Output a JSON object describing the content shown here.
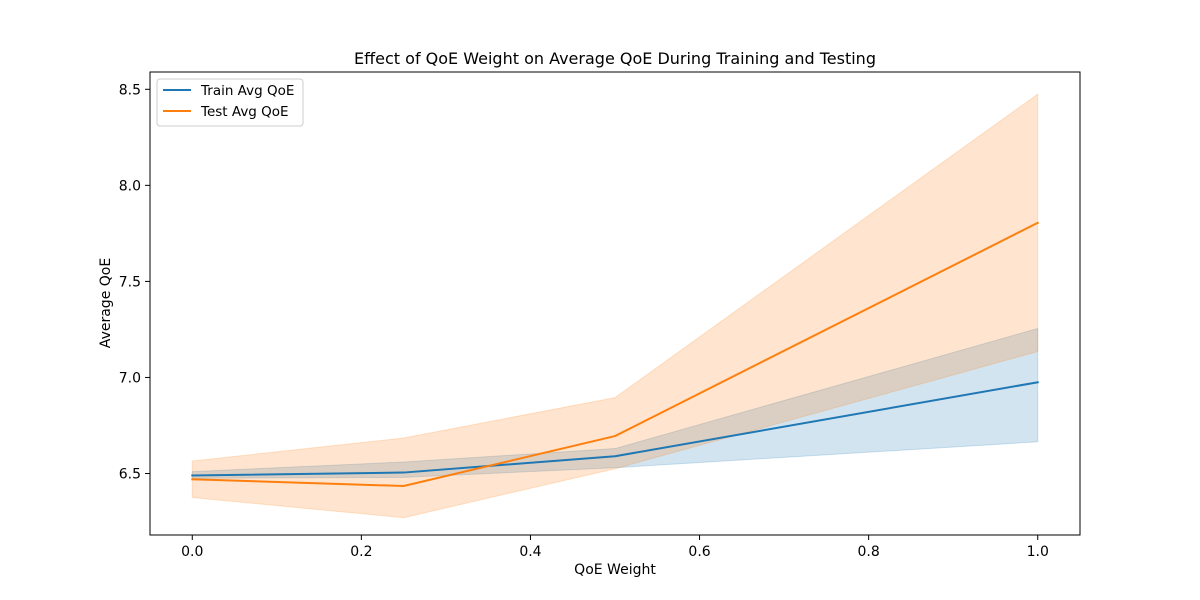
{
  "chart_data": {
    "type": "line",
    "title": "Effect of QoE Weight on Average QoE During Training and Testing",
    "xlabel": "QoE Weight",
    "ylabel": "Average QoE",
    "xlim": [
      -0.05,
      1.05
    ],
    "ylim": [
      6.18,
      8.59
    ],
    "xticks": [
      0.0,
      0.2,
      0.4,
      0.6,
      0.8,
      1.0
    ],
    "xtick_labels": [
      "0.0",
      "0.2",
      "0.4",
      "0.6",
      "0.8",
      "1.0"
    ],
    "yticks": [
      6.5,
      7.0,
      7.5,
      8.0,
      8.5
    ],
    "ytick_labels": [
      "6.5",
      "7.0",
      "7.5",
      "8.0",
      "8.5"
    ],
    "grid": false,
    "legend_position": "upper-left",
    "x": [
      0.0,
      0.25,
      0.5,
      1.0
    ],
    "series": [
      {
        "name": "Train Avg QoE",
        "color": "#1f77b4",
        "values": [
          6.49,
          6.505,
          6.59,
          6.975
        ],
        "band_lower": [
          6.475,
          6.48,
          6.53,
          6.665
        ],
        "band_upper": [
          6.51,
          6.56,
          6.63,
          7.255
        ]
      },
      {
        "name": "Test Avg QoE",
        "color": "#ff7f0e",
        "values": [
          6.47,
          6.435,
          6.695,
          7.805
        ],
        "band_lower": [
          6.375,
          6.27,
          6.525,
          7.135
        ],
        "band_upper": [
          6.565,
          6.685,
          6.895,
          8.475
        ]
      }
    ]
  }
}
